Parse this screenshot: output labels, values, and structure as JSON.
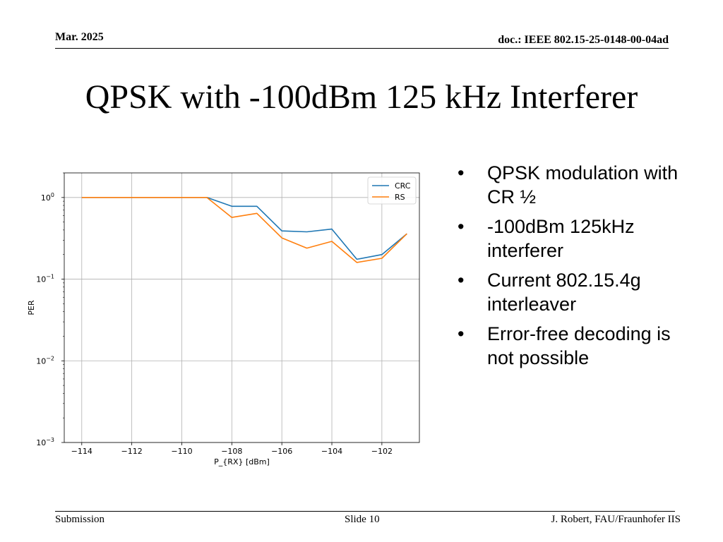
{
  "header": {
    "date": "Mar. 2025",
    "doc": "doc.: IEEE 802.15-25-0148-00-04ad"
  },
  "title": "QPSK with -100dBm 125 kHz Interferer",
  "bullets": [
    "QPSK modulation with CR ½",
    "-100dBm 125kHz interferer",
    "Current 802.15.4g interleaver",
    "Error-free decoding is not possible"
  ],
  "bullet_symbol": "•",
  "footer": {
    "left": "Submission",
    "center": "Slide 10",
    "right": "J. Robert, FAU/Fraunhofer IIS"
  },
  "chart_data": {
    "type": "line",
    "xlabel": "P_{RX} [dBm]",
    "ylabel": "PER",
    "yscale": "log",
    "xlim": [
      -114.7,
      -100.5
    ],
    "ylim": [
      0.001,
      2.0
    ],
    "xticks": [
      -114,
      -112,
      -110,
      -108,
      -106,
      -104,
      -102
    ],
    "xtick_labels": [
      "−114",
      "−112",
      "−110",
      "−108",
      "−106",
      "−104",
      "−102"
    ],
    "yticks": [
      1,
      0.1,
      0.01,
      0.001
    ],
    "ytick_bases": [
      "10",
      "10",
      "10",
      "10"
    ],
    "ytick_exponents": [
      "0",
      "−1",
      "−2",
      "−3"
    ],
    "grid": true,
    "legend_position": "upper right",
    "x": [
      -114,
      -113,
      -112,
      -111,
      -110,
      -109,
      -108,
      -107,
      -106,
      -105,
      -104,
      -103,
      -102,
      -101
    ],
    "series": [
      {
        "name": "CRC",
        "color": "#1f77b4",
        "values": [
          1,
          1,
          1,
          1,
          1,
          1,
          0.78,
          0.78,
          0.39,
          0.38,
          0.41,
          0.175,
          0.2,
          0.36
        ]
      },
      {
        "name": "RS",
        "color": "#ff7f0e",
        "values": [
          1,
          1,
          1,
          1,
          1,
          1,
          0.57,
          0.64,
          0.32,
          0.24,
          0.29,
          0.16,
          0.18,
          0.36
        ]
      }
    ]
  }
}
